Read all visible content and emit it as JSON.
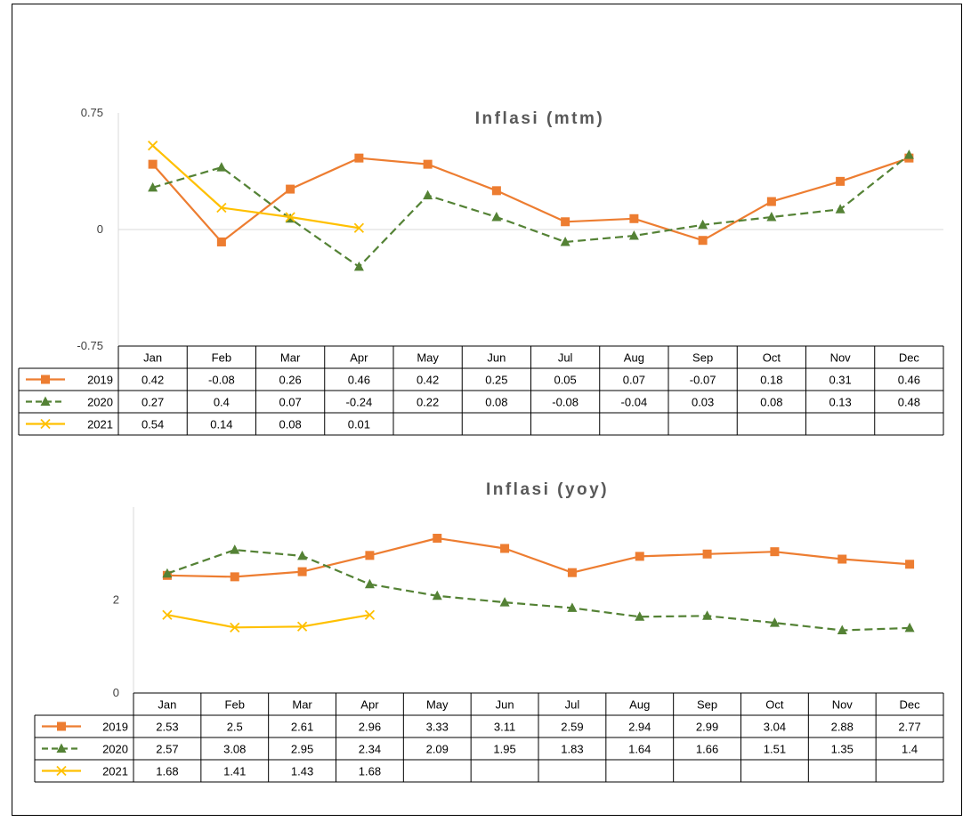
{
  "chart_data": [
    {
      "type": "line",
      "title": "Inflasi (mtm)",
      "categories": [
        "Jan",
        "Feb",
        "Mar",
        "Apr",
        "May",
        "Jun",
        "Jul",
        "Aug",
        "Sep",
        "Oct",
        "Nov",
        "Dec"
      ],
      "y_ticks": [
        "0.75",
        "0",
        "-0.75"
      ],
      "ylim": [
        -0.75,
        0.75
      ],
      "grid": false,
      "data_table": true,
      "series": [
        {
          "name": "2019",
          "color": "#ED7D31",
          "marker": "square",
          "dash": "solid",
          "values": [
            0.42,
            -0.08,
            0.26,
            0.46,
            0.42,
            0.25,
            0.05,
            0.07,
            -0.07,
            0.18,
            0.31,
            0.46
          ],
          "labels": [
            "0.42",
            "-0.08",
            "0.26",
            "0.46",
            "0.42",
            "0.25",
            "0.05",
            "0.07",
            "-0.07",
            "0.18",
            "0.31",
            "0.46"
          ]
        },
        {
          "name": "2020",
          "color": "#548235",
          "marker": "triangle",
          "dash": "dashed",
          "values": [
            0.27,
            0.4,
            0.07,
            -0.24,
            0.22,
            0.08,
            -0.08,
            -0.04,
            0.03,
            0.08,
            0.13,
            0.48
          ],
          "labels": [
            "0.27",
            "0.4",
            "0.07",
            "-0.24",
            "0.22",
            "0.08",
            "-0.08",
            "-0.04",
            "0.03",
            "0.08",
            "0.13",
            "0.48"
          ]
        },
        {
          "name": "2021",
          "color": "#FFC000",
          "marker": "x",
          "dash": "solid",
          "values": [
            0.54,
            0.14,
            0.08,
            0.01,
            null,
            null,
            null,
            null,
            null,
            null,
            null,
            null
          ],
          "labels": [
            "0.54",
            "0.14",
            "0.08",
            "0.01",
            "",
            "",
            "",
            "",
            "",
            "",
            "",
            ""
          ]
        }
      ]
    },
    {
      "type": "line",
      "title": "Inflasi (yoy)",
      "categories": [
        "Jan",
        "Feb",
        "Mar",
        "Apr",
        "May",
        "Jun",
        "Jul",
        "Aug",
        "Sep",
        "Oct",
        "Nov",
        "Dec"
      ],
      "y_ticks": [
        "2",
        "0"
      ],
      "ylim": [
        0,
        4
      ],
      "grid": false,
      "data_table": true,
      "series": [
        {
          "name": "2019",
          "color": "#ED7D31",
          "marker": "square",
          "dash": "solid",
          "values": [
            2.53,
            2.5,
            2.61,
            2.96,
            3.33,
            3.11,
            2.59,
            2.94,
            2.99,
            3.04,
            2.88,
            2.77
          ],
          "labels": [
            "2.53",
            "2.5",
            "2.61",
            "2.96",
            "3.33",
            "3.11",
            "2.59",
            "2.94",
            "2.99",
            "3.04",
            "2.88",
            "2.77"
          ]
        },
        {
          "name": "2020",
          "color": "#548235",
          "marker": "triangle",
          "dash": "dashed",
          "values": [
            2.57,
            3.08,
            2.95,
            2.34,
            2.09,
            1.95,
            1.83,
            1.64,
            1.66,
            1.51,
            1.35,
            1.4
          ],
          "labels": [
            "2.57",
            "3.08",
            "2.95",
            "2.34",
            "2.09",
            "1.95",
            "1.83",
            "1.64",
            "1.66",
            "1.51",
            "1.35",
            "1.4"
          ]
        },
        {
          "name": "2021",
          "color": "#FFC000",
          "marker": "x",
          "dash": "solid",
          "values": [
            1.68,
            1.41,
            1.43,
            1.68,
            null,
            null,
            null,
            null,
            null,
            null,
            null,
            null
          ],
          "labels": [
            "1.68",
            "1.41",
            "1.43",
            "1.68",
            "",
            "",
            "",
            "",
            "",
            "",
            "",
            ""
          ]
        }
      ]
    }
  ]
}
